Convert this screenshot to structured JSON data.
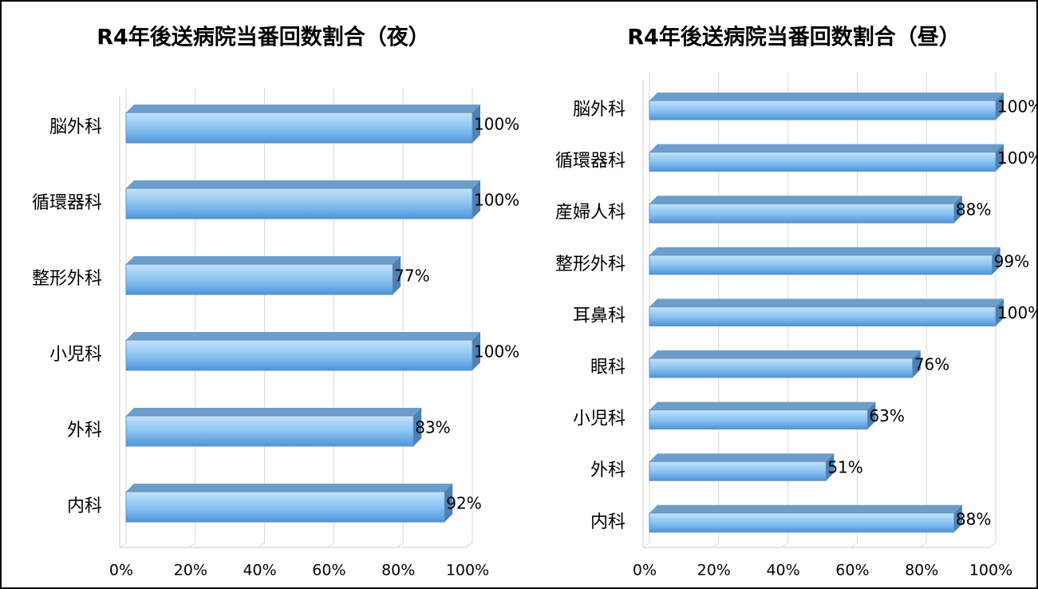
{
  "chart_data": [
    {
      "type": "bar",
      "title": "R4年後送病院当番回数割合（夜）",
      "categories": [
        "脳外科",
        "循環器科",
        "整形外科",
        "小児科",
        "外科",
        "内科"
      ],
      "values": [
        100,
        100,
        77,
        100,
        83,
        92
      ],
      "value_labels": [
        "100%",
        "100%",
        "77%",
        "100%",
        "83%",
        "92%"
      ],
      "color": "#7ab8ee",
      "xlim": [
        0,
        100
      ],
      "xticks": [
        {
          "value": 0,
          "label": "0%"
        },
        {
          "value": 20,
          "label": "20%"
        },
        {
          "value": 40,
          "label": "40%"
        },
        {
          "value": 60,
          "label": "60%"
        },
        {
          "value": 80,
          "label": "80%"
        },
        {
          "value": 100,
          "label": "100%"
        }
      ],
      "grid": true
    },
    {
      "type": "bar",
      "title": "R4年後送病院当番回数割合（昼）",
      "categories": [
        "脳外科",
        "循環器科",
        "産婦人科",
        "整形外科",
        "耳鼻科",
        "眼科",
        "小児科",
        "外科",
        "内科"
      ],
      "values": [
        100,
        100,
        88,
        99,
        100,
        76,
        63,
        51,
        88
      ],
      "value_labels": [
        "100%",
        "100%",
        "88%",
        "99%",
        "100%",
        "76%",
        "63%",
        "51%",
        "88%"
      ],
      "color": "#7ab8ee",
      "xlim": [
        0,
        100
      ],
      "xticks": [
        {
          "value": 0,
          "label": "0%"
        },
        {
          "value": 20,
          "label": "20%"
        },
        {
          "value": 40,
          "label": "40%"
        },
        {
          "value": 60,
          "label": "60%"
        },
        {
          "value": 80,
          "label": "80%"
        },
        {
          "value": 100,
          "label": "100%"
        }
      ],
      "grid": true
    }
  ]
}
